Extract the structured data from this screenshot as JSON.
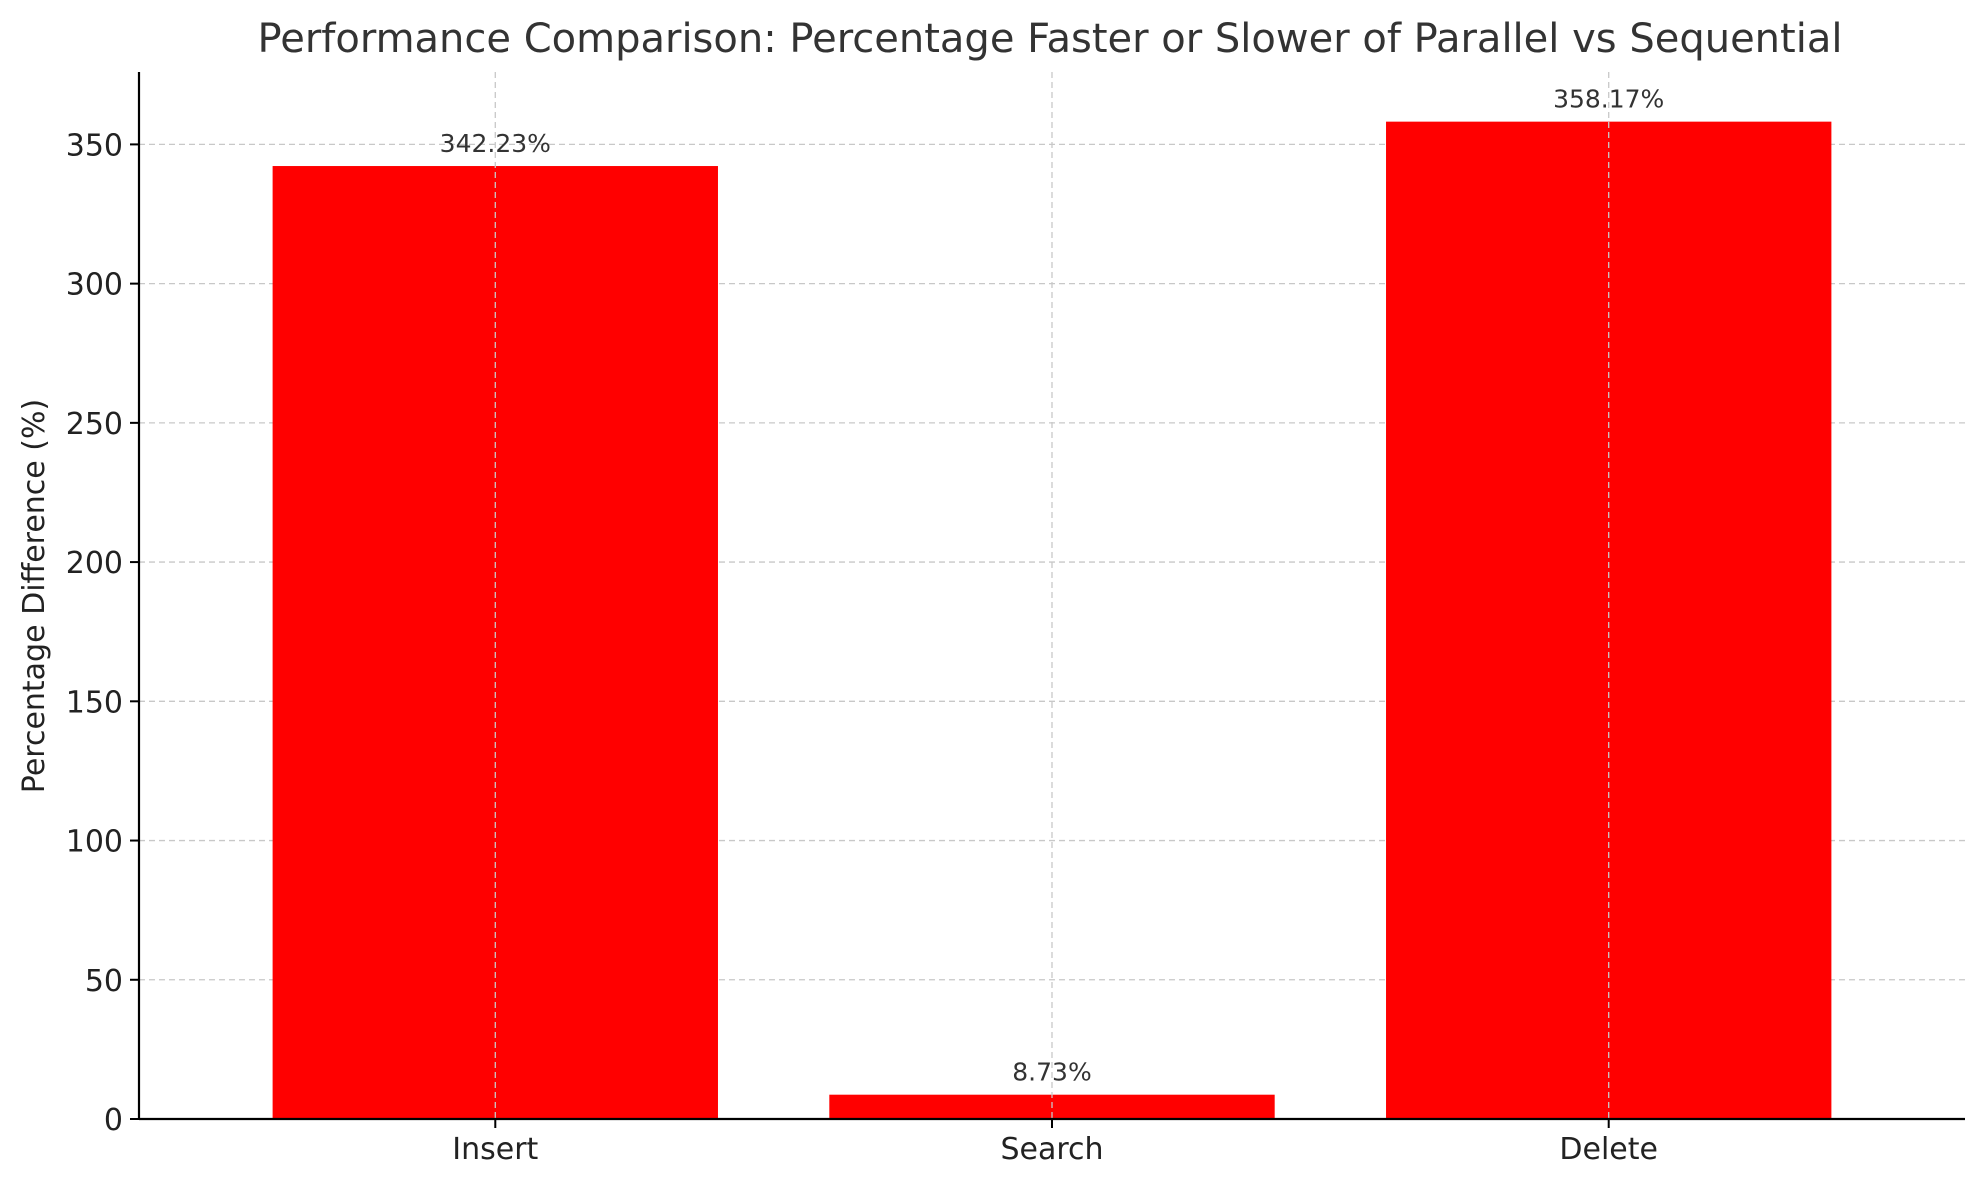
{
  "chart_data": {
    "type": "bar",
    "title": "Performance Comparison: Percentage Faster or Slower of Parallel vs Sequential",
    "xlabel": "",
    "ylabel": "Percentage Difference (%)",
    "categories": [
      "Insert",
      "Search",
      "Delete"
    ],
    "values": [
      342.23,
      8.73,
      358.17
    ],
    "data_labels": [
      "342.23%",
      "8.73%",
      "358.17%"
    ],
    "ylim": [
      0,
      376
    ],
    "yticks": [
      0,
      50,
      100,
      150,
      200,
      250,
      300,
      350
    ],
    "grid": true,
    "bar_color": "#ff0000"
  }
}
